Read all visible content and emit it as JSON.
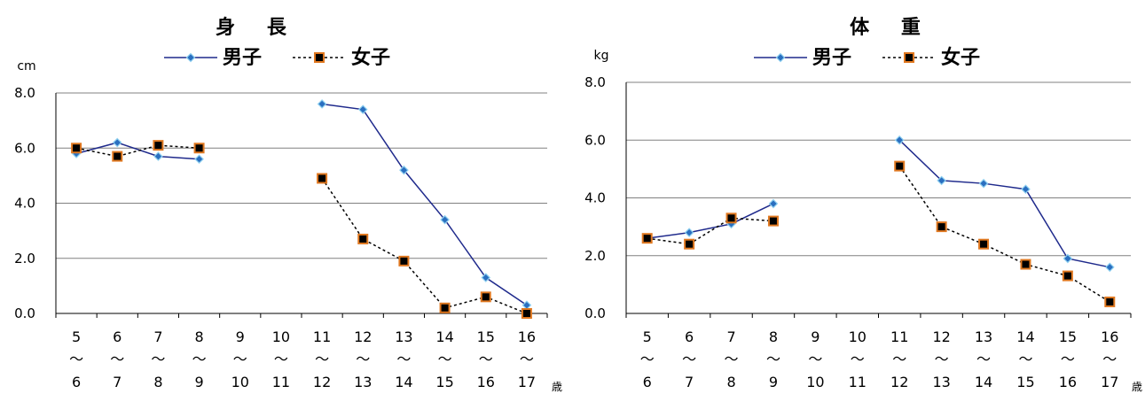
{
  "chart_data": [
    {
      "type": "line",
      "title": "身 長",
      "y_unit": "cm",
      "x_unit": "歳",
      "ylim": [
        0,
        8
      ],
      "yticks": [
        "0.0",
        "2.0",
        "4.0",
        "6.0",
        "8.0"
      ],
      "grid": true,
      "legend_position": "top-center",
      "categories": [
        {
          "top": "5",
          "mid": "～",
          "bottom": "6"
        },
        {
          "top": "6",
          "mid": "～",
          "bottom": "7"
        },
        {
          "top": "7",
          "mid": "～",
          "bottom": "8"
        },
        {
          "top": "8",
          "mid": "～",
          "bottom": "9"
        },
        {
          "top": "9",
          "mid": "～",
          "bottom": "10"
        },
        {
          "top": "10",
          "mid": "～",
          "bottom": "11"
        },
        {
          "top": "11",
          "mid": "～",
          "bottom": "12"
        },
        {
          "top": "12",
          "mid": "～",
          "bottom": "13"
        },
        {
          "top": "13",
          "mid": "～",
          "bottom": "14"
        },
        {
          "top": "14",
          "mid": "～",
          "bottom": "15"
        },
        {
          "top": "15",
          "mid": "～",
          "bottom": "16"
        },
        {
          "top": "16",
          "mid": "～",
          "bottom": "17"
        }
      ],
      "series": [
        {
          "name": "男子",
          "color": "#1f2a8c",
          "marker": "diamond",
          "line": "solid",
          "values": [
            5.8,
            6.2,
            5.7,
            5.6,
            null,
            null,
            7.6,
            7.4,
            5.2,
            3.4,
            1.3,
            0.3
          ]
        },
        {
          "name": "女子",
          "color": "#000000",
          "marker": "square",
          "line": "dashed",
          "values": [
            6.0,
            5.7,
            6.1,
            6.0,
            null,
            null,
            4.9,
            2.7,
            1.9,
            0.2,
            0.6,
            0.0
          ]
        }
      ]
    },
    {
      "type": "line",
      "title": "体 重",
      "y_unit": "kg",
      "x_unit": "歳",
      "ylim": [
        0,
        8
      ],
      "yticks": [
        "0.0",
        "2.0",
        "4.0",
        "6.0",
        "8.0"
      ],
      "grid": true,
      "legend_position": "top-center",
      "categories": [
        {
          "top": "5",
          "mid": "～",
          "bottom": "6"
        },
        {
          "top": "6",
          "mid": "～",
          "bottom": "7"
        },
        {
          "top": "7",
          "mid": "～",
          "bottom": "8"
        },
        {
          "top": "8",
          "mid": "～",
          "bottom": "9"
        },
        {
          "top": "9",
          "mid": "～",
          "bottom": "10"
        },
        {
          "top": "10",
          "mid": "～",
          "bottom": "11"
        },
        {
          "top": "11",
          "mid": "～",
          "bottom": "12"
        },
        {
          "top": "12",
          "mid": "～",
          "bottom": "13"
        },
        {
          "top": "13",
          "mid": "～",
          "bottom": "14"
        },
        {
          "top": "14",
          "mid": "～",
          "bottom": "15"
        },
        {
          "top": "15",
          "mid": "～",
          "bottom": "16"
        },
        {
          "top": "16",
          "mid": "～",
          "bottom": "17"
        }
      ],
      "series": [
        {
          "name": "男子",
          "color": "#1f2a8c",
          "marker": "diamond",
          "line": "solid",
          "values": [
            2.6,
            2.8,
            3.1,
            3.8,
            null,
            null,
            6.0,
            4.6,
            4.5,
            4.3,
            1.9,
            1.6
          ]
        },
        {
          "name": "女子",
          "color": "#000000",
          "marker": "square",
          "line": "dashed",
          "values": [
            2.6,
            2.4,
            3.3,
            3.2,
            null,
            null,
            5.1,
            3.0,
            2.4,
            1.7,
            1.3,
            0.4
          ]
        }
      ]
    }
  ],
  "marker_colors": {
    "diamond_fill": "#2a6fc0",
    "diamond_edge": "#8fd0f0",
    "square_fill": "#000000",
    "square_edge": "#e07820"
  }
}
